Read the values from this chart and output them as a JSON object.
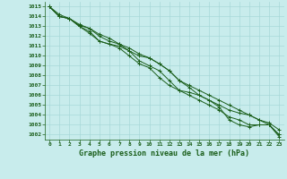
{
  "x": [
    0,
    1,
    2,
    3,
    4,
    5,
    6,
    7,
    8,
    9,
    10,
    11,
    12,
    13,
    14,
    15,
    16,
    17,
    18,
    19,
    20,
    21,
    22,
    23
  ],
  "series": [
    [
      1015.0,
      1014.0,
      1013.8,
      1013.0,
      1012.5,
      1011.5,
      1011.2,
      1011.0,
      1010.5,
      1009.5,
      1009.0,
      1008.5,
      1007.5,
      1006.5,
      1006.0,
      1005.5,
      1005.0,
      1004.5,
      1003.8,
      1003.5,
      1003.0,
      1003.0,
      1003.0,
      1002.0
    ],
    [
      1015.0,
      1014.0,
      1013.8,
      1013.0,
      1012.3,
      1011.5,
      1011.2,
      1010.8,
      1010.0,
      1009.2,
      1008.8,
      1007.8,
      1007.0,
      1006.5,
      1006.3,
      1006.0,
      1005.5,
      1004.8,
      1003.5,
      1003.0,
      1002.8,
      1003.0,
      1003.0,
      1002.0
    ],
    [
      1015.0,
      1014.0,
      1013.8,
      1013.1,
      1012.8,
      1012.0,
      1011.5,
      1011.2,
      1010.5,
      1010.0,
      1009.8,
      1009.2,
      1008.5,
      1007.5,
      1007.0,
      1006.5,
      1006.0,
      1005.5,
      1005.0,
      1004.5,
      1004.0,
      1003.5,
      1003.2,
      1002.5
    ],
    [
      1015.0,
      1014.2,
      1013.8,
      1013.2,
      1012.8,
      1012.2,
      1011.8,
      1011.2,
      1010.8,
      1010.2,
      1009.8,
      1009.2,
      1008.5,
      1007.5,
      1006.8,
      1006.0,
      1005.5,
      1005.0,
      1004.5,
      1004.2,
      1004.0,
      1003.5,
      1003.0,
      1001.8
    ]
  ],
  "ylim": [
    1002,
    1015
  ],
  "xlim": [
    0,
    23
  ],
  "yticks": [
    1002,
    1003,
    1004,
    1005,
    1006,
    1007,
    1008,
    1009,
    1010,
    1011,
    1012,
    1013,
    1014,
    1015
  ],
  "xticks": [
    0,
    1,
    2,
    3,
    4,
    5,
    6,
    7,
    8,
    9,
    10,
    11,
    12,
    13,
    14,
    15,
    16,
    17,
    18,
    19,
    20,
    21,
    22,
    23
  ],
  "xlabel": "Graphe pression niveau de la mer (hPa)",
  "line_color": "#1a5e1a",
  "bg_color": "#c8ecec",
  "grid_color": "#a8d8d8",
  "tick_color": "#1a5e1a",
  "label_color": "#1a5e1a",
  "marker": "+",
  "marker_size": 3.0,
  "linewidth": 0.7,
  "xlabel_fontsize": 6.0,
  "tick_fontsize": 4.5
}
